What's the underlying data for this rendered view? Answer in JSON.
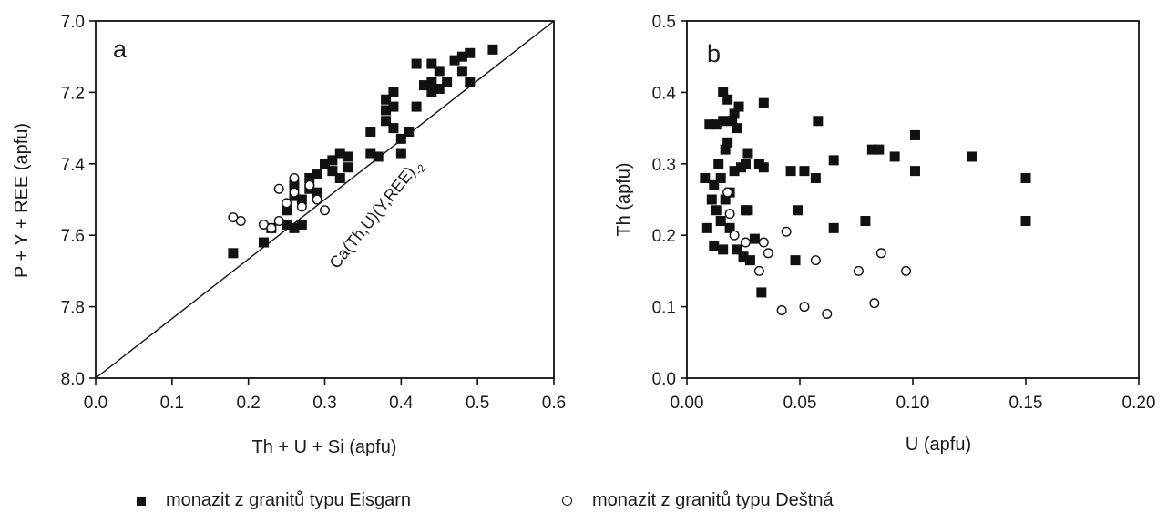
{
  "chart_data": [
    {
      "type": "scatter",
      "panel_label": "a",
      "xlabel": "Th + U + Si (apfu)",
      "ylabel": "P + Y + REE (apfu)",
      "xlim": [
        0.0,
        0.6
      ],
      "ylim": [
        7.0,
        8.0
      ],
      "y_inverted": true,
      "xticks": [
        "0.0",
        "0.1",
        "0.2",
        "0.3",
        "0.4",
        "0.5",
        "0.6"
      ],
      "yticks": [
        "7.0",
        "7.2",
        "7.4",
        "7.6",
        "7.8",
        "8.0"
      ],
      "grid": false,
      "reference_line": {
        "label": "Ca(Th,U)(Y,REE)",
        "label_subscript": "-2",
        "points": [
          [
            0.0,
            8.0
          ],
          [
            0.6,
            7.0
          ]
        ]
      },
      "series": [
        {
          "marker": "filled-square",
          "points": [
            [
              0.18,
              7.65
            ],
            [
              0.22,
              7.62
            ],
            [
              0.23,
              7.58
            ],
            [
              0.25,
              7.57
            ],
            [
              0.26,
              7.58
            ],
            [
              0.27,
              7.57
            ],
            [
              0.25,
              7.53
            ],
            [
              0.26,
              7.49
            ],
            [
              0.26,
              7.46
            ],
            [
              0.27,
              7.5
            ],
            [
              0.28,
              7.47
            ],
            [
              0.28,
              7.44
            ],
            [
              0.29,
              7.48
            ],
            [
              0.29,
              7.43
            ],
            [
              0.3,
              7.4
            ],
            [
              0.31,
              7.39
            ],
            [
              0.31,
              7.42
            ],
            [
              0.32,
              7.44
            ],
            [
              0.32,
              7.37
            ],
            [
              0.33,
              7.38
            ],
            [
              0.33,
              7.41
            ],
            [
              0.36,
              7.31
            ],
            [
              0.36,
              7.37
            ],
            [
              0.37,
              7.38
            ],
            [
              0.38,
              7.22
            ],
            [
              0.38,
              7.25
            ],
            [
              0.38,
              7.28
            ],
            [
              0.39,
              7.2
            ],
            [
              0.39,
              7.24
            ],
            [
              0.39,
              7.3
            ],
            [
              0.4,
              7.33
            ],
            [
              0.4,
              7.37
            ],
            [
              0.41,
              7.31
            ],
            [
              0.42,
              7.12
            ],
            [
              0.42,
              7.24
            ],
            [
              0.43,
              7.18
            ],
            [
              0.44,
              7.12
            ],
            [
              0.44,
              7.17
            ],
            [
              0.44,
              7.2
            ],
            [
              0.45,
              7.14
            ],
            [
              0.45,
              7.19
            ],
            [
              0.46,
              7.17
            ],
            [
              0.47,
              7.11
            ],
            [
              0.48,
              7.1
            ],
            [
              0.48,
              7.14
            ],
            [
              0.49,
              7.09
            ],
            [
              0.49,
              7.17
            ],
            [
              0.52,
              7.08
            ]
          ]
        },
        {
          "marker": "open-circle",
          "points": [
            [
              0.18,
              7.55
            ],
            [
              0.19,
              7.56
            ],
            [
              0.22,
              7.57
            ],
            [
              0.23,
              7.58
            ],
            [
              0.24,
              7.47
            ],
            [
              0.24,
              7.56
            ],
            [
              0.25,
              7.51
            ],
            [
              0.26,
              7.44
            ],
            [
              0.26,
              7.48
            ],
            [
              0.27,
              7.52
            ],
            [
              0.28,
              7.46
            ],
            [
              0.29,
              7.5
            ],
            [
              0.3,
              7.53
            ]
          ]
        }
      ]
    },
    {
      "type": "scatter",
      "panel_label": "b",
      "xlabel": "U (apfu)",
      "ylabel": "Th (apfu)",
      "xlim": [
        0.0,
        0.2
      ],
      "ylim": [
        0.0,
        0.5
      ],
      "xticks": [
        "0.00",
        "0.05",
        "0.10",
        "0.15",
        "0.20"
      ],
      "yticks": [
        "0.0",
        "0.1",
        "0.2",
        "0.3",
        "0.4",
        "0.5"
      ],
      "grid": false,
      "series": [
        {
          "marker": "filled-square",
          "points": [
            [
              0.008,
              0.28
            ],
            [
              0.009,
              0.21
            ],
            [
              0.01,
              0.355
            ],
            [
              0.011,
              0.25
            ],
            [
              0.012,
              0.185
            ],
            [
              0.012,
              0.27
            ],
            [
              0.013,
              0.355
            ],
            [
              0.013,
              0.235
            ],
            [
              0.014,
              0.3
            ],
            [
              0.015,
              0.28
            ],
            [
              0.015,
              0.22
            ],
            [
              0.016,
              0.36
            ],
            [
              0.016,
              0.4
            ],
            [
              0.016,
              0.18
            ],
            [
              0.017,
              0.25
            ],
            [
              0.017,
              0.32
            ],
            [
              0.018,
              0.39
            ],
            [
              0.018,
              0.33
            ],
            [
              0.019,
              0.26
            ],
            [
              0.019,
              0.21
            ],
            [
              0.02,
              0.36
            ],
            [
              0.021,
              0.29
            ],
            [
              0.021,
              0.37
            ],
            [
              0.022,
              0.35
            ],
            [
              0.022,
              0.18
            ],
            [
              0.023,
              0.38
            ],
            [
              0.024,
              0.295
            ],
            [
              0.025,
              0.17
            ],
            [
              0.026,
              0.3
            ],
            [
              0.026,
              0.235
            ],
            [
              0.027,
              0.315
            ],
            [
              0.027,
              0.235
            ],
            [
              0.028,
              0.165
            ],
            [
              0.03,
              0.195
            ],
            [
              0.032,
              0.3
            ],
            [
              0.033,
              0.12
            ],
            [
              0.034,
              0.385
            ],
            [
              0.034,
              0.295
            ],
            [
              0.046,
              0.29
            ],
            [
              0.048,
              0.165
            ],
            [
              0.049,
              0.235
            ],
            [
              0.052,
              0.29
            ],
            [
              0.057,
              0.28
            ],
            [
              0.058,
              0.36
            ],
            [
              0.065,
              0.305
            ],
            [
              0.065,
              0.21
            ],
            [
              0.079,
              0.22
            ],
            [
              0.082,
              0.32
            ],
            [
              0.085,
              0.32
            ],
            [
              0.092,
              0.31
            ],
            [
              0.101,
              0.34
            ],
            [
              0.101,
              0.29
            ],
            [
              0.126,
              0.31
            ],
            [
              0.15,
              0.28
            ],
            [
              0.15,
              0.22
            ]
          ]
        },
        {
          "marker": "open-circle",
          "points": [
            [
              0.018,
              0.26
            ],
            [
              0.019,
              0.23
            ],
            [
              0.021,
              0.2
            ],
            [
              0.026,
              0.19
            ],
            [
              0.032,
              0.15
            ],
            [
              0.034,
              0.19
            ],
            [
              0.036,
              0.175
            ],
            [
              0.042,
              0.095
            ],
            [
              0.044,
              0.205
            ],
            [
              0.052,
              0.1
            ],
            [
              0.057,
              0.165
            ],
            [
              0.062,
              0.09
            ],
            [
              0.076,
              0.15
            ],
            [
              0.083,
              0.105
            ],
            [
              0.086,
              0.175
            ],
            [
              0.097,
              0.15
            ]
          ]
        }
      ]
    }
  ],
  "legend": {
    "items": [
      {
        "marker": "filled-square",
        "label": "monazit z granitů typu Eisgarn"
      },
      {
        "marker": "open-circle",
        "label": "monazit z granitů typu Deštná"
      }
    ]
  }
}
